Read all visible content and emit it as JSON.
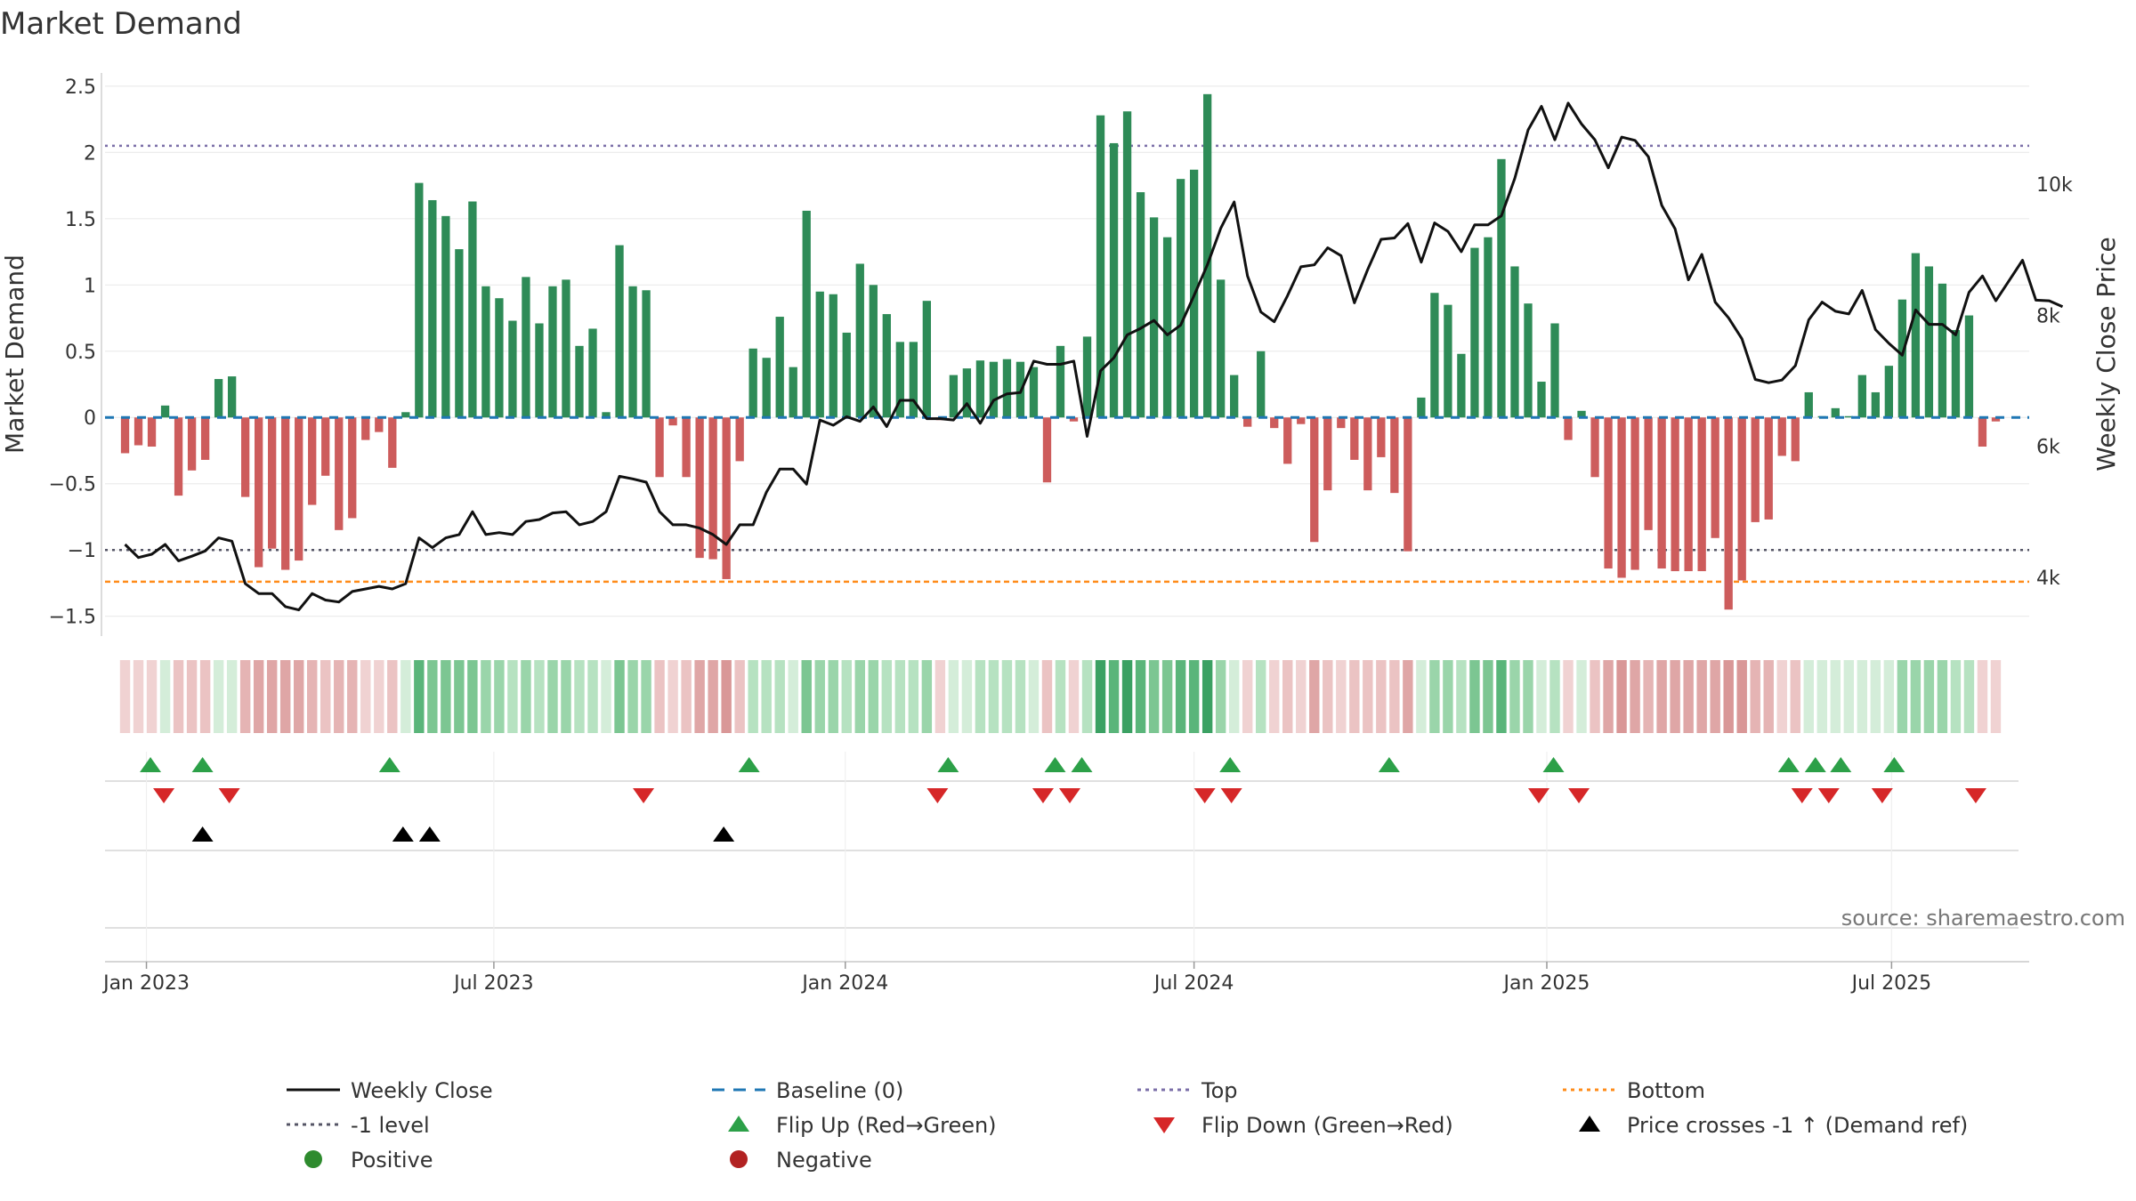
{
  "chart_data": {
    "type": "bar",
    "title": "Market Demand",
    "ylabel": "Market Demand",
    "y2label": "Weekly Close Price",
    "ylim": [
      -1.65,
      2.6
    ],
    "y2lim": [
      3100,
      11700
    ],
    "yticks": [
      {
        "v": 2.5,
        "label": "2.5"
      },
      {
        "v": 2,
        "label": "2"
      },
      {
        "v": 1.5,
        "label": "1.5"
      },
      {
        "v": 1,
        "label": "1"
      },
      {
        "v": 0.5,
        "label": "0.5"
      },
      {
        "v": 0,
        "label": "0"
      },
      {
        "v": -0.5,
        "label": "−0.5"
      },
      {
        "v": -1,
        "label": "−1"
      },
      {
        "v": -1.5,
        "label": "−1.5"
      }
    ],
    "y2ticks": [
      {
        "v": 10000,
        "label": "10k"
      },
      {
        "v": 8000,
        "label": "8k"
      },
      {
        "v": 6000,
        "label": "6k"
      },
      {
        "v": 4000,
        "label": "4k"
      }
    ],
    "xticks": [
      {
        "week": 1.6,
        "label": "Jan 2023"
      },
      {
        "week": 27.6,
        "label": "Jul 2023"
      },
      {
        "week": 53.9,
        "label": "Jan 2024"
      },
      {
        "week": 80.0,
        "label": "Jul 2024"
      },
      {
        "week": 106.4,
        "label": "Jan 2025"
      },
      {
        "week": 132.2,
        "label": "Jul 2025"
      }
    ],
    "x_range_weeks": [
      -1.5,
      142.5
    ],
    "reference_lines": {
      "top": 2.05,
      "minus_one_level": -1.0,
      "bottom": -1.24,
      "baseline": 0
    },
    "demand": [
      -0.27,
      -0.21,
      -0.22,
      0.09,
      -0.59,
      -0.4,
      -0.32,
      0.29,
      0.31,
      -0.6,
      -1.13,
      -0.99,
      -1.15,
      -1.08,
      -0.66,
      -0.44,
      -0.85,
      -0.76,
      -0.17,
      -0.11,
      -0.38,
      0.04,
      1.77,
      1.64,
      1.52,
      1.27,
      1.63,
      0.99,
      0.9,
      0.73,
      1.06,
      0.71,
      0.99,
      1.04,
      0.54,
      0.67,
      0.04,
      1.3,
      0.99,
      0.96,
      -0.45,
      -0.06,
      -0.45,
      -1.06,
      -1.07,
      -1.22,
      -0.33,
      0.52,
      0.45,
      0.76,
      0.38,
      1.56,
      0.95,
      0.93,
      0.64,
      1.16,
      1.0,
      0.78,
      0.57,
      0.57,
      0.88,
      -0.02,
      0.32,
      0.37,
      0.43,
      0.42,
      0.44,
      0.42,
      0.38,
      -0.49,
      0.54,
      -0.03,
      0.61,
      2.28,
      2.07,
      2.31,
      1.7,
      1.51,
      1.36,
      1.8,
      1.87,
      2.44,
      1.04,
      0.32,
      -0.07,
      0.5,
      -0.08,
      -0.35,
      -0.05,
      -0.94,
      -0.55,
      -0.08,
      -0.32,
      -0.55,
      -0.3,
      -0.57,
      -1.01,
      0.15,
      0.94,
      0.85,
      0.48,
      1.28,
      1.36,
      1.95,
      1.14,
      0.86,
      0.27,
      0.71,
      -0.17,
      0.05,
      -0.45,
      -1.14,
      -1.21,
      -1.15,
      -0.85,
      -1.14,
      -1.16,
      -1.16,
      -1.16,
      -0.91,
      -1.45,
      -1.23,
      -0.79,
      -0.77,
      -0.29,
      -0.33,
      0.19,
      0.01,
      0.07,
      0.01,
      0.32,
      0.19,
      0.39,
      0.89,
      1.24,
      1.14,
      1.01,
      0.66,
      0.77,
      -0.22,
      -0.03
    ],
    "close": [
      4500,
      4300,
      4350,
      4500,
      4250,
      4320,
      4400,
      4600,
      4550,
      3900,
      3750,
      3750,
      3550,
      3500,
      3750,
      3650,
      3620,
      3780,
      3820,
      3860,
      3820,
      3900,
      4600,
      4450,
      4600,
      4650,
      5000,
      4650,
      4680,
      4650,
      4850,
      4880,
      4980,
      5000,
      4800,
      4850,
      5000,
      5540,
      5500,
      5450,
      5000,
      4800,
      4800,
      4750,
      4650,
      4500,
      4800,
      4800,
      5300,
      5650,
      5650,
      5420,
      6400,
      6320,
      6450,
      6380,
      6600,
      6300,
      6700,
      6700,
      6420,
      6420,
      6400,
      6650,
      6350,
      6700,
      6800,
      6820,
      7300,
      7250,
      7250,
      7300,
      6150,
      7150,
      7350,
      7700,
      7800,
      7920,
      7700,
      7850,
      8300,
      8770,
      9330,
      9730,
      8600,
      8050,
      7900,
      8300,
      8740,
      8770,
      9030,
      8910,
      8190,
      8700,
      9160,
      9180,
      9400,
      8810,
      9410,
      9280,
      8970,
      9380,
      9380,
      9520,
      10090,
      10830,
      11190,
      10680,
      11240,
      10920,
      10680,
      10250,
      10720,
      10670,
      10420,
      9680,
      9320,
      8540,
      8930,
      8200,
      7960,
      7640,
      7020,
      6970,
      7010,
      7230,
      7930,
      8200,
      8060,
      8020,
      8380,
      7780,
      7570,
      7390,
      8080,
      7860,
      7860,
      7700,
      8350,
      8600,
      8220,
      8530,
      8840,
      8230,
      8220,
      8130
    ],
    "strip": {
      "green_colors": [
        "#d4edd9",
        "#b6e2c1",
        "#9ad5aa",
        "#7cc692",
        "#5ab57a",
        "#3ba163"
      ],
      "red_colors": [
        "#f0d2d2",
        "#ebc3c3",
        "#e5b4b4",
        "#dfa6a6",
        "#d99797"
      ]
    },
    "flip_up_weeks": [
      1.9,
      5.8,
      19.8,
      46.7,
      61.6,
      69.6,
      71.6,
      82.7,
      94.6,
      106.9,
      124.5,
      126.5,
      128.4,
      132.4
    ],
    "flip_down_weeks": [
      2.9,
      7.8,
      38.8,
      60.8,
      68.7,
      70.7,
      80.8,
      82.8,
      105.8,
      108.8,
      125.5,
      127.5,
      131.5,
      138.5
    ],
    "price_cross_weeks": [
      5.8,
      20.8,
      22.8,
      44.8
    ],
    "legend": [
      {
        "label": "Weekly Close",
        "kind": "solid-line",
        "color": "#111111"
      },
      {
        "label": "Baseline (0)",
        "kind": "dash-line",
        "color": "#1f77b4"
      },
      {
        "label": "Top",
        "kind": "dot-line",
        "color": "#7b6fa8"
      },
      {
        "label": "Bottom",
        "kind": "dot-line",
        "color": "#ff8c1a"
      },
      {
        "label": "-1 level",
        "kind": "dot-line",
        "color": "#555566"
      },
      {
        "label": "Flip Up (Red→Green)",
        "kind": "tri-up",
        "color": "#2ca048"
      },
      {
        "label": "Flip Down (Green→Red)",
        "kind": "tri-down",
        "color": "#d62728"
      },
      {
        "label": "Price crosses -1 ↑ (Demand ref)",
        "kind": "tri-up",
        "color": "#000000"
      },
      {
        "label": "Positive",
        "kind": "circle",
        "color": "#2e8b2e"
      },
      {
        "label": "Negative",
        "kind": "circle",
        "color": "#b22222"
      }
    ],
    "colors": {
      "positive_bar": "#2e8b57",
      "negative_bar": "#cd5c5c",
      "close_line": "#111111",
      "baseline": "#1f77b4",
      "top_line": "#7b6fa8",
      "minus_one_line": "#555566",
      "bottom_line": "#ff8c1a",
      "flip_up": "#2ca048",
      "flip_down": "#d62728",
      "price_cross": "#000000"
    },
    "source": "source: sharemaestro.com"
  }
}
